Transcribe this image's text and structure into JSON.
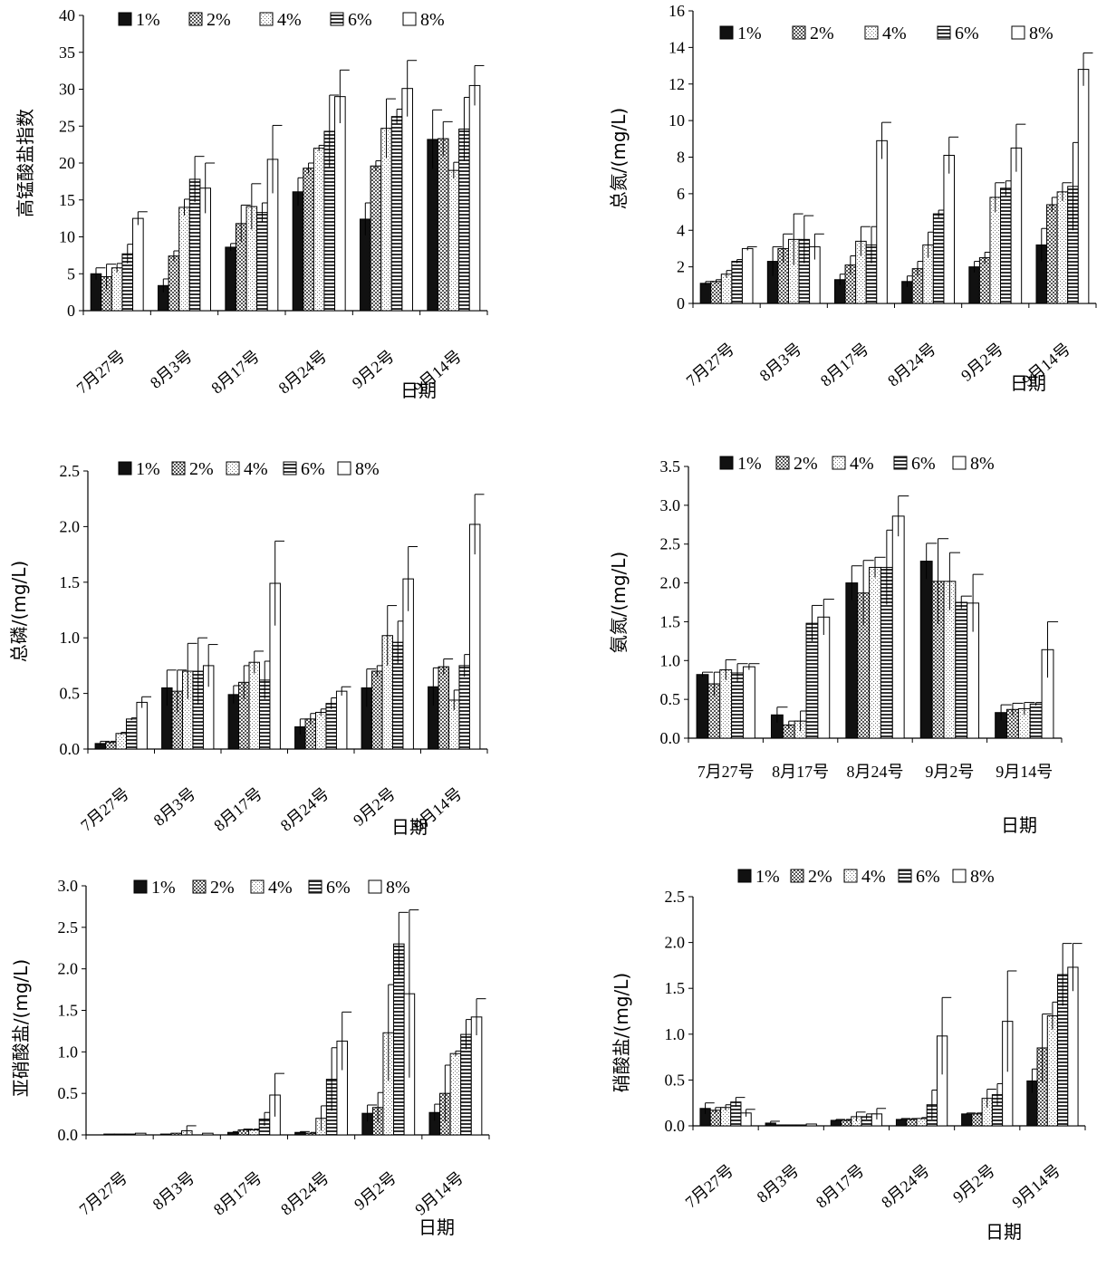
{
  "legend_labels": [
    "1%",
    "2%",
    "4%",
    "6%",
    "8%"
  ],
  "chart_data": [
    {
      "type": "bar",
      "ylabel": "高锰酸盐指数",
      "xlabel": "日期",
      "ylim": [
        0,
        40
      ],
      "ystep": 5,
      "ydecimals": 0,
      "categories": [
        "7月27号",
        "8月3号",
        "8月17号",
        "8月24号",
        "9月2号",
        "9月14号"
      ],
      "series": [
        {
          "name": "1%",
          "values": [
            5.0,
            3.4,
            8.6,
            16.1,
            12.4,
            23.2
          ],
          "errors": [
            0.8,
            0.9,
            0.5,
            1.9,
            2.2,
            4.0
          ]
        },
        {
          "name": "2%",
          "values": [
            4.6,
            7.4,
            11.8,
            19.3,
            19.6,
            23.3
          ],
          "errors": [
            1.7,
            0.7,
            2.5,
            0.7,
            0.7,
            2.3
          ]
        },
        {
          "name": "4%",
          "values": [
            5.8,
            14.0,
            14.1,
            22.0,
            24.7,
            19.0
          ],
          "errors": [
            0.6,
            1.1,
            3.1,
            0.4,
            4.0,
            1.1
          ]
        },
        {
          "name": "6%",
          "values": [
            7.7,
            17.8,
            13.3,
            24.3,
            26.3,
            24.6
          ],
          "errors": [
            1.3,
            3.1,
            1.3,
            4.9,
            1.0,
            4.3
          ]
        },
        {
          "name": "8%",
          "values": [
            12.5,
            16.6,
            20.5,
            29.0,
            30.1,
            30.5
          ],
          "errors": [
            0.9,
            3.4,
            4.6,
            3.6,
            3.8,
            2.7
          ]
        }
      ]
    },
    {
      "type": "bar",
      "ylabel": "总氮/(mg/L)",
      "xlabel": "日期",
      "ylim": [
        0,
        16
      ],
      "ystep": 2,
      "ydecimals": 0,
      "categories": [
        "7月27号",
        "8月3号",
        "8月17号",
        "8月24号",
        "9月2号",
        "9月14号"
      ],
      "series": [
        {
          "name": "1%",
          "values": [
            1.1,
            2.3,
            1.3,
            1.2,
            2.0,
            3.2
          ],
          "errors": [
            0.1,
            0.8,
            0.3,
            0.3,
            0.3,
            0.9
          ]
        },
        {
          "name": "2%",
          "values": [
            1.2,
            3.0,
            2.1,
            1.9,
            2.5,
            5.4
          ],
          "errors": [
            0.1,
            0.8,
            0.5,
            0.4,
            0.3,
            0.4
          ]
        },
        {
          "name": "4%",
          "values": [
            1.6,
            3.5,
            3.4,
            3.2,
            5.8,
            6.1
          ],
          "errors": [
            0.2,
            1.4,
            0.8,
            0.7,
            0.8,
            0.5
          ]
        },
        {
          "name": "6%",
          "values": [
            2.3,
            3.5,
            3.2,
            4.9,
            6.3,
            6.4
          ],
          "errors": [
            0.1,
            1.3,
            1.0,
            0.2,
            0.4,
            2.4
          ]
        },
        {
          "name": "8%",
          "values": [
            3.0,
            3.1,
            8.9,
            8.1,
            8.5,
            12.8
          ],
          "errors": [
            0.1,
            0.7,
            1.0,
            1.0,
            1.3,
            0.9
          ]
        }
      ]
    },
    {
      "type": "bar",
      "ylabel": "总磷/(mg/L)",
      "xlabel": "日期",
      "ylim": [
        0,
        2.5
      ],
      "ystep": 0.5,
      "ydecimals": 1,
      "categories": [
        "7月27号",
        "8月3号",
        "8月17号",
        "8月24号",
        "9月2号",
        "9月14号"
      ],
      "series": [
        {
          "name": "1%",
          "values": [
            0.05,
            0.55,
            0.49,
            0.2,
            0.55,
            0.56
          ],
          "errors": [
            0.02,
            0.16,
            0.08,
            0.07,
            0.17,
            0.17
          ]
        },
        {
          "name": "2%",
          "values": [
            0.06,
            0.52,
            0.6,
            0.27,
            0.7,
            0.74
          ],
          "errors": [
            0.01,
            0.19,
            0.15,
            0.05,
            0.05,
            0.07
          ]
        },
        {
          "name": "4%",
          "values": [
            0.14,
            0.7,
            0.78,
            0.33,
            1.02,
            0.44
          ],
          "errors": [
            0.01,
            0.25,
            0.1,
            0.03,
            0.27,
            0.09
          ]
        },
        {
          "name": "6%",
          "values": [
            0.27,
            0.7,
            0.62,
            0.41,
            0.96,
            0.75
          ],
          "errors": [
            0.01,
            0.3,
            0.17,
            0.05,
            0.19,
            0.1
          ]
        },
        {
          "name": "8%",
          "values": [
            0.42,
            0.75,
            1.49,
            0.52,
            1.53,
            2.02
          ],
          "errors": [
            0.05,
            0.19,
            0.38,
            0.04,
            0.29,
            0.27
          ]
        }
      ]
    },
    {
      "type": "bar",
      "ylabel": "氨氮/(mg/L)",
      "xlabel": "日期",
      "ylim": [
        0,
        3.5
      ],
      "ystep": 0.5,
      "ydecimals": 1,
      "categories": [
        "7月27号",
        "8月17号",
        "8月24号",
        "9月2号",
        "9月14号"
      ],
      "series": [
        {
          "name": "1%",
          "values": [
            0.82,
            0.3,
            2.0,
            2.28,
            0.33
          ],
          "errors": [
            0.03,
            0.1,
            0.22,
            0.23,
            0.1
          ]
        },
        {
          "name": "2%",
          "values": [
            0.7,
            0.17,
            1.87,
            2.02,
            0.37
          ],
          "errors": [
            0.15,
            0.05,
            0.42,
            0.55,
            0.08
          ]
        },
        {
          "name": "4%",
          "values": [
            0.88,
            0.22,
            2.2,
            2.02,
            0.38
          ],
          "errors": [
            0.13,
            0.13,
            0.13,
            0.37,
            0.08
          ]
        },
        {
          "name": "6%",
          "values": [
            0.84,
            1.48,
            2.2,
            1.75,
            0.44
          ],
          "errors": [
            0.12,
            0.23,
            0.48,
            0.08,
            0.02
          ]
        },
        {
          "name": "8%",
          "values": [
            0.92,
            1.56,
            2.86,
            1.74,
            1.14
          ],
          "errors": [
            0.04,
            0.23,
            0.26,
            0.37,
            0.36
          ]
        }
      ]
    },
    {
      "type": "bar",
      "ylabel": "亚硝酸盐/(mg/L)",
      "xlabel": "日期",
      "ylim": [
        0,
        3.0
      ],
      "ystep": 0.5,
      "ydecimals": 1,
      "categories": [
        "7月27号",
        "8月3号",
        "8月17号",
        "8月24号",
        "9月2号",
        "9月14号"
      ],
      "series": [
        {
          "name": "1%",
          "values": [
            0.0,
            0.01,
            0.03,
            0.03,
            0.26,
            0.27
          ],
          "errors": [
            0.0,
            0.0,
            0.01,
            0.01,
            0.1,
            0.1
          ]
        },
        {
          "name": "2%",
          "values": [
            0.01,
            0.02,
            0.06,
            0.02,
            0.33,
            0.5
          ],
          "errors": [
            0.0,
            0.0,
            0.01,
            0.01,
            0.18,
            0.34
          ]
        },
        {
          "name": "4%",
          "values": [
            0.01,
            0.05,
            0.06,
            0.2,
            1.23,
            0.98
          ],
          "errors": [
            0.0,
            0.06,
            0.01,
            0.15,
            0.58,
            0.03
          ]
        },
        {
          "name": "6%",
          "values": [
            0.01,
            0.0,
            0.19,
            0.67,
            2.3,
            1.21
          ],
          "errors": [
            0.0,
            0.0,
            0.08,
            0.38,
            0.38,
            0.18
          ]
        },
        {
          "name": "8%",
          "values": [
            0.02,
            0.02,
            0.48,
            1.13,
            1.7,
            1.42
          ],
          "errors": [
            0.0,
            0.0,
            0.26,
            0.35,
            1.01,
            0.22
          ]
        }
      ]
    },
    {
      "type": "bar",
      "ylabel": "硝酸盐/(mg/L)",
      "xlabel": "日期",
      "ylim": [
        0,
        2.5
      ],
      "ystep": 0.5,
      "ydecimals": 1,
      "categories": [
        "7月27号",
        "8月3号",
        "8月17号",
        "8月24号",
        "9月2号",
        "9月14号"
      ],
      "series": [
        {
          "name": "1%",
          "values": [
            0.19,
            0.03,
            0.06,
            0.07,
            0.13,
            0.49
          ],
          "errors": [
            0.06,
            0.02,
            0.01,
            0.01,
            0.01,
            0.13
          ]
        },
        {
          "name": "2%",
          "values": [
            0.17,
            0.01,
            0.06,
            0.07,
            0.13,
            0.85
          ],
          "errors": [
            0.03,
            0.0,
            0.01,
            0.01,
            0.01,
            0.37
          ]
        },
        {
          "name": "4%",
          "values": [
            0.2,
            0.01,
            0.1,
            0.08,
            0.3,
            1.2
          ],
          "errors": [
            0.03,
            0.0,
            0.05,
            0.01,
            0.1,
            0.15
          ]
        },
        {
          "name": "6%",
          "values": [
            0.26,
            0.01,
            0.1,
            0.23,
            0.34,
            1.65
          ],
          "errors": [
            0.05,
            0.0,
            0.03,
            0.16,
            0.12,
            0.34
          ]
        },
        {
          "name": "8%",
          "values": [
            0.14,
            0.02,
            0.13,
            0.98,
            1.14,
            1.73
          ],
          "errors": [
            0.04,
            0.0,
            0.06,
            0.42,
            0.55,
            0.26
          ]
        }
      ]
    }
  ]
}
